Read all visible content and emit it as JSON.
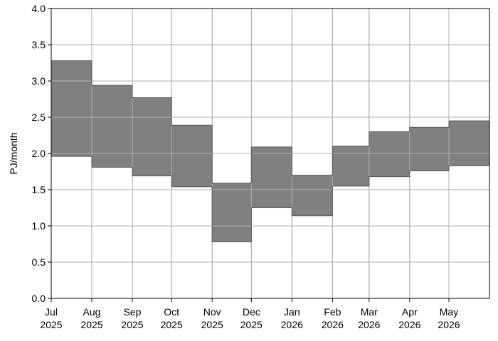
{
  "chart_data": {
    "type": "area",
    "title": "",
    "xlabel": "",
    "ylabel": "PJ/month",
    "ylim": [
      0,
      4.0
    ],
    "yticks": [
      "0.0",
      "0.5",
      "1.0",
      "1.5",
      "2.0",
      "2.5",
      "3.0",
      "3.5",
      "4.0"
    ],
    "xlim": [
      "2025-07-01",
      "2026-06-01"
    ],
    "x_tick_labels": [
      {
        "date": "2025-07-01",
        "month": "Jul",
        "year": "2025"
      },
      {
        "date": "2025-08-01",
        "month": "Aug",
        "year": "2025"
      },
      {
        "date": "2025-09-01",
        "month": "Sep",
        "year": "2025"
      },
      {
        "date": "2025-10-01",
        "month": "Oct",
        "year": "2025"
      },
      {
        "date": "2025-11-01",
        "month": "Nov",
        "year": "2025"
      },
      {
        "date": "2025-12-01",
        "month": "Dec",
        "year": "2025"
      },
      {
        "date": "2026-01-01",
        "month": "Jan",
        "year": "2026"
      },
      {
        "date": "2026-02-01",
        "month": "Feb",
        "year": "2026"
      },
      {
        "date": "2026-03-01",
        "month": "Mar",
        "year": "2026"
      },
      {
        "date": "2026-04-01",
        "month": "Apr",
        "year": "2026"
      },
      {
        "date": "2026-05-01",
        "month": "May",
        "year": "2026"
      }
    ],
    "grid": true,
    "fill_color": "#808080",
    "edge_color": "#555555",
    "series": [
      {
        "bands": [
          {
            "month": "2025-07",
            "low": 1.96,
            "high": 3.28
          },
          {
            "month": "2025-08",
            "low": 1.81,
            "high": 2.94
          },
          {
            "month": "2025-09",
            "low": 1.69,
            "high": 2.77
          },
          {
            "month": "2025-10",
            "low": 1.54,
            "high": 2.39
          },
          {
            "month": "2025-11",
            "low": 0.78,
            "high": 1.59
          },
          {
            "month": "2025-12",
            "low": 1.25,
            "high": 2.09
          },
          {
            "month": "2026-01",
            "low": 1.14,
            "high": 1.7
          },
          {
            "month": "2026-02",
            "low": 1.55,
            "high": 2.1
          },
          {
            "month": "2026-03",
            "low": 1.68,
            "high": 2.3
          },
          {
            "month": "2026-04",
            "low": 1.76,
            "high": 2.36
          },
          {
            "month": "2026-05",
            "low": 1.83,
            "high": 2.45
          }
        ]
      }
    ]
  }
}
